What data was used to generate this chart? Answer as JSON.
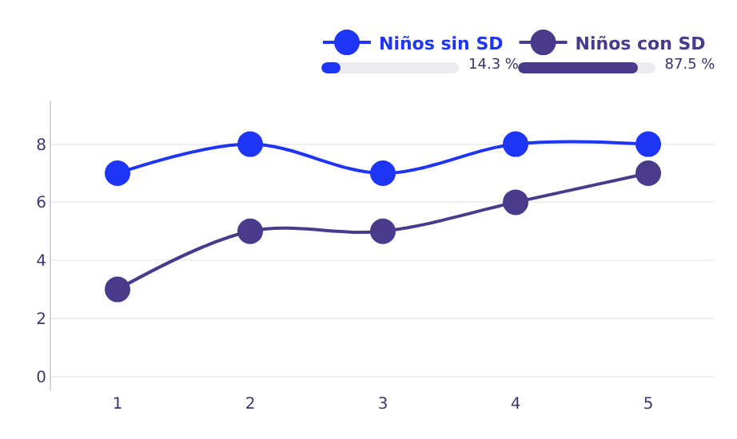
{
  "chart_data": {
    "type": "line",
    "categories": [
      "1",
      "2",
      "3",
      "4",
      "5"
    ],
    "series": [
      {
        "name": "Niños sin SD",
        "color": "#1f35f5",
        "values": [
          7,
          8,
          7,
          8,
          8
        ]
      },
      {
        "name": "Niños con SD",
        "color": "#4a3a8c",
        "values": [
          3,
          5,
          5,
          6,
          7
        ]
      }
    ],
    "ylim": [
      -0.5,
      9.5
    ],
    "yticks": [
      0,
      2,
      4,
      6,
      8
    ],
    "grid": "y",
    "legend": "top right",
    "marker": "circle",
    "line_style": "solid",
    "annotations": [
      "14.3 %",
      "87.5 %"
    ]
  }
}
